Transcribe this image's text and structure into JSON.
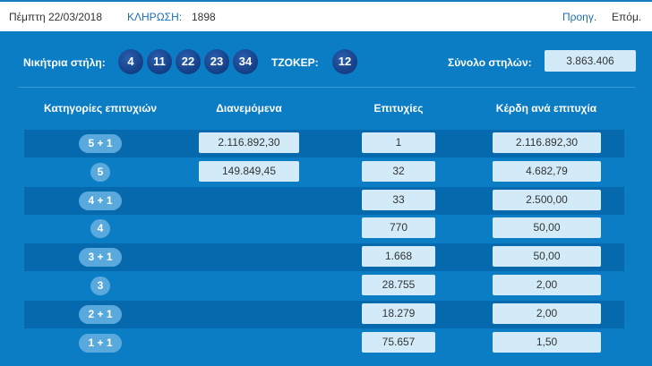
{
  "header": {
    "date": "Πέμπτη 22/03/2018",
    "draw_label": "ΚΛΗΡΩΣΗ:",
    "draw_number": "1898",
    "prev": "Προηγ.",
    "next": "Επόμ."
  },
  "winning": {
    "label": "Νικήτρια στήλη:",
    "numbers": [
      "4",
      "11",
      "22",
      "23",
      "34"
    ],
    "joker_label": "ΤΖΟΚΕΡ:",
    "joker": "12",
    "total_label": "Σύνολο στηλών:",
    "total": "3.863.406"
  },
  "columns": [
    "Κατηγορίες επιτυχιών",
    "Διανεμόμενα",
    "Επιτυχίες",
    "Κέρδη ανά επιτυχία"
  ],
  "rows": [
    {
      "category": "5 + 1",
      "distributed": "2.116.892,30",
      "winners": "1",
      "prize": "2.116.892,30"
    },
    {
      "category": "5",
      "distributed": "149.849,45",
      "winners": "32",
      "prize": "4.682,79"
    },
    {
      "category": "4 + 1",
      "distributed": "",
      "winners": "33",
      "prize": "2.500,00"
    },
    {
      "category": "4",
      "distributed": "",
      "winners": "770",
      "prize": "50,00"
    },
    {
      "category": "3 + 1",
      "distributed": "",
      "winners": "1.668",
      "prize": "50,00"
    },
    {
      "category": "3",
      "distributed": "",
      "winners": "28.755",
      "prize": "2,00"
    },
    {
      "category": "2 + 1",
      "distributed": "",
      "winners": "18.279",
      "prize": "2,00"
    },
    {
      "category": "1 + 1",
      "distributed": "",
      "winners": "75.657",
      "prize": "1,50"
    }
  ]
}
